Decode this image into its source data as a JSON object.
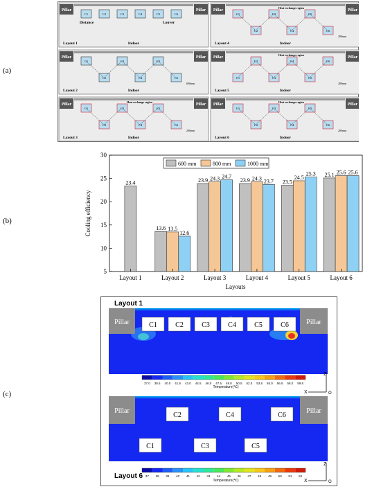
{
  "panel_labels": {
    "a": "(a)",
    "b": "(b)",
    "c": "(c)"
  },
  "layouts_panel": {
    "pillar": "Pillar",
    "indoor": "Indoor",
    "distance": "Distance",
    "louver": "Louver",
    "heat_region": "Heat exchange region",
    "gap": "200mm",
    "gap_600": "600mm",
    "gap_120": "1200mm",
    "layouts": [
      {
        "title": "Layout 1",
        "units": [
          "C1",
          "C2",
          "C3",
          "C4",
          "C5",
          "C6"
        ]
      },
      {
        "title": "Layout 4",
        "units": [
          "C1",
          "C2",
          "C3",
          "C4",
          "C5",
          "C6"
        ]
      },
      {
        "title": "Layout 2",
        "units": [
          "C1",
          "C2",
          "C3",
          "C4",
          "C5",
          "C6"
        ]
      },
      {
        "title": "Layout 5",
        "units": [
          "C1",
          "C2",
          "C3",
          "C4",
          "C5",
          "C6"
        ]
      },
      {
        "title": "Layout 3",
        "units": [
          "C1",
          "C2",
          "C3",
          "C4",
          "C5",
          "C6"
        ]
      },
      {
        "title": "Layout 6",
        "units": [
          "C1",
          "C2",
          "C3",
          "C4",
          "C5",
          "C6"
        ]
      }
    ]
  },
  "chart_data": {
    "type": "bar",
    "categories": [
      "Layout 1",
      "Layout 2",
      "Layout 3",
      "Layout 4",
      "Layout 5",
      "Layout 6"
    ],
    "series": [
      {
        "name": "600 mm",
        "color": "#c0c0c0",
        "values": [
          23.4,
          13.6,
          23.9,
          23.9,
          23.5,
          25.1
        ]
      },
      {
        "name": "800 mm",
        "color": "#f6c796",
        "values": [
          null,
          13.5,
          24.3,
          24.3,
          24.5,
          25.6
        ]
      },
      {
        "name": "1000 mm",
        "color": "#8fd0f5",
        "values": [
          null,
          12.6,
          24.7,
          23.7,
          25.3,
          25.6
        ]
      }
    ],
    "value_labels": [
      [
        "23.4",
        "13.6",
        "23.9",
        "23.9",
        "23.5",
        "25.1"
      ],
      [
        "",
        "13.5",
        "24.3",
        "24.3",
        "24.5",
        "25.6"
      ],
      [
        "",
        "12.6",
        "24.7",
        "23.7",
        "25.3",
        "25.6"
      ]
    ],
    "xlabel": "Layouts",
    "ylabel": "Cooling efficiency",
    "ylim": [
      5,
      30
    ],
    "yticks": [
      "5",
      "10",
      "15",
      "20",
      "25",
      "30"
    ],
    "legend": "top-center"
  },
  "contours": {
    "layout1": {
      "title": "Layout 1",
      "pillar": "Pillar",
      "units": [
        "C1",
        "C2",
        "C3",
        "C4",
        "C5",
        "C6"
      ],
      "scale_ticks": [
        "37.0",
        "38.5",
        "40.0",
        "41.5",
        "43.0",
        "44.5",
        "46.0",
        "47.5",
        "49.0",
        "50.5",
        "52.0",
        "53.5",
        "55.0",
        "56.5",
        "58.0",
        "59.5"
      ],
      "scale_label": "Temperature(℃)"
    },
    "layout6": {
      "title": "Layout 6",
      "pillar": "Pillar",
      "units": [
        "C1",
        "C2",
        "C3",
        "C4",
        "C5",
        "C6"
      ],
      "scale_ticks": [
        "37",
        "38",
        "39",
        "40",
        "41",
        "42",
        "43",
        "44",
        "45",
        "46",
        "47",
        "48",
        "49",
        "50",
        "51",
        "52"
      ],
      "scale_label": "Temperature(℃)"
    },
    "axis": {
      "z": "Z",
      "x": "X",
      "o": "O"
    }
  }
}
